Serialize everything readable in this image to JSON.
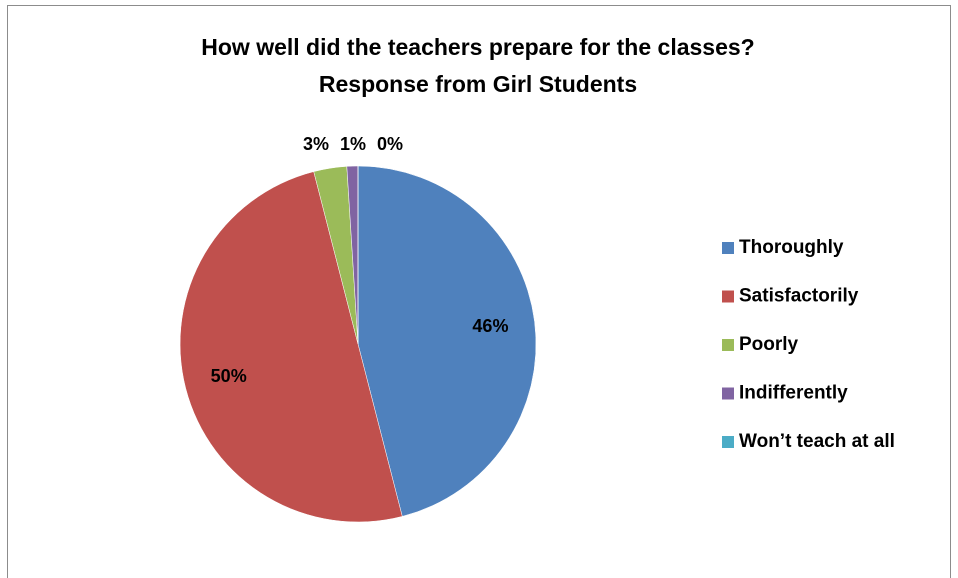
{
  "chart_data": {
    "type": "pie",
    "title": [
      "How well did the teachers prepare for the classes?",
      "Response from Girl Students"
    ],
    "categories": [
      "Thoroughly",
      "Satisfactorily",
      "Poorly",
      "Indifferently",
      "Won’t teach at all"
    ],
    "values": [
      46,
      50,
      3,
      1,
      0
    ],
    "value_labels": [
      "46%",
      "50%",
      "3%",
      "1%",
      "0%"
    ],
    "colors": [
      "#4f81bd",
      "#c0504d",
      "#9bbb59",
      "#8064a2",
      "#4bacc6"
    ],
    "legend": "right"
  }
}
